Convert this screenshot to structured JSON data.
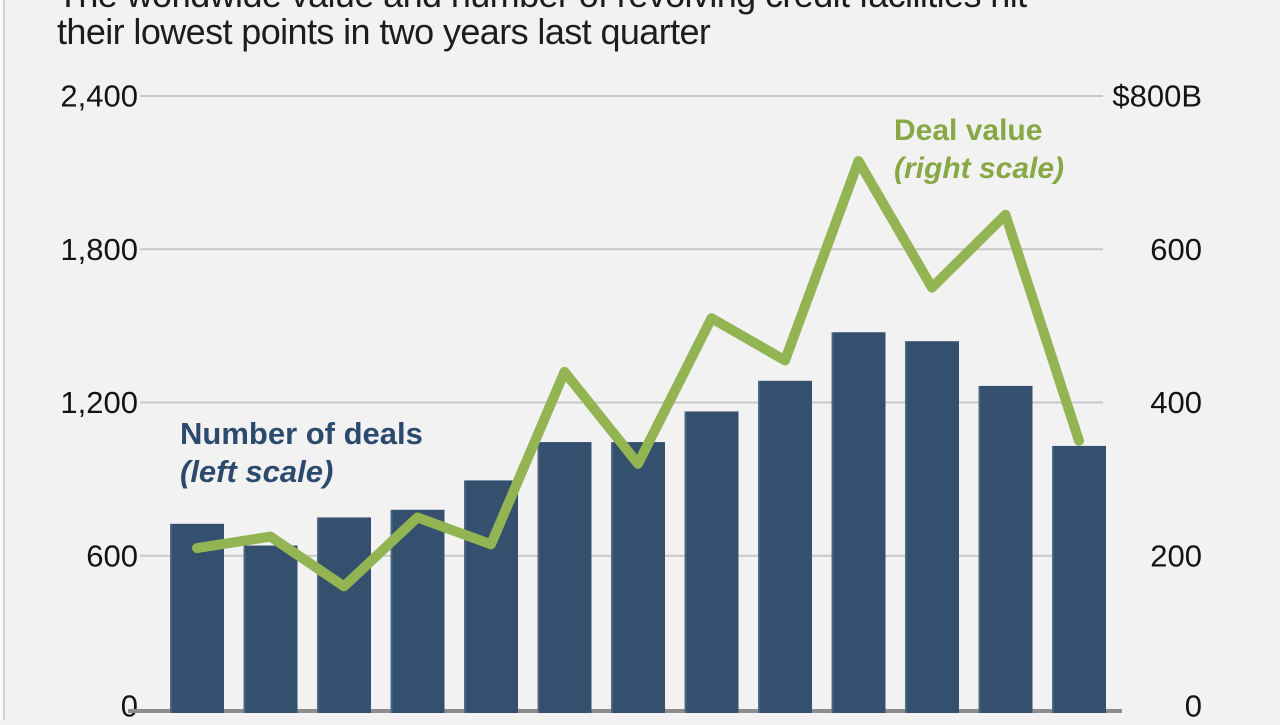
{
  "title": {
    "line1": "The worldwide value and number of revolving credit facilities hit",
    "line2": "their lowest points in two years last quarter"
  },
  "legend": {
    "bars": {
      "label": "Number of deals",
      "scale_note": "(left scale)"
    },
    "line": {
      "label": "Deal value",
      "scale_note": "(right scale)"
    }
  },
  "left_axis": {
    "tick_labels": [
      "2,400",
      "1,800",
      "1,200",
      "600",
      "0"
    ],
    "tick_values": [
      2400,
      1800,
      1200,
      600,
      0
    ]
  },
  "right_axis": {
    "tick_labels": [
      "$800B",
      "600",
      "400",
      "200",
      "0"
    ],
    "tick_values": [
      800,
      600,
      400,
      200,
      0
    ]
  },
  "colors": {
    "background": "#f2f2f3",
    "bar": "#34506e",
    "bar_edge_highlight": "#5a7189",
    "line": "#92b452",
    "legend_bar_text": "#2c4a6e",
    "legend_line_text": "#87a845",
    "gridline": "#c8c8c8",
    "baseline": "#8d8d8d",
    "axis_text": "#141414",
    "title_text": "#1d1d1d"
  },
  "chart_data": {
    "type": "bar",
    "subtype": "bar+line dual axis combo",
    "title": "The worldwide value and number of revolving credit facilities hit their lowest points in two years last quarter",
    "x_index": [
      1,
      2,
      3,
      4,
      5,
      6,
      7,
      8,
      9,
      10,
      11,
      12,
      13
    ],
    "x_tick_labels_visible": false,
    "series": [
      {
        "name": "Number of deals",
        "type": "bar",
        "axis": "left",
        "values": [
          725,
          640,
          750,
          780,
          895,
          1045,
          1045,
          1165,
          1285,
          1475,
          1440,
          1265,
          1030
        ]
      },
      {
        "name": "Deal value",
        "type": "line",
        "axis": "right",
        "unit": "$B",
        "values": [
          210,
          225,
          160,
          250,
          215,
          440,
          320,
          510,
          455,
          715,
          550,
          645,
          350
        ]
      }
    ],
    "left_axis_range": [
      0,
      2400
    ],
    "right_axis_range": [
      0,
      800
    ],
    "grid": "horizontal only",
    "legend_position": "annotations inside plot"
  }
}
